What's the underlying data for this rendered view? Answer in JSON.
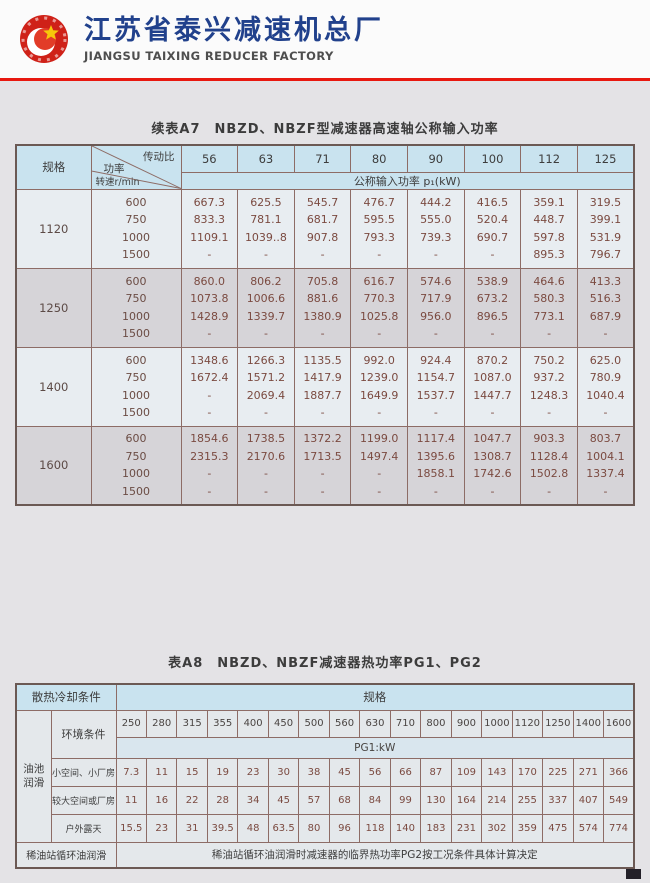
{
  "header": {
    "company_cn": "江苏省泰兴减速机总厂",
    "company_en": "JIANGSU TAIXING REDUCER FACTORY",
    "logo_icon": "gear-star-emblem",
    "accent_color": "#e8180f"
  },
  "table_a7": {
    "title": "续表A7　NBZD、NBZF型减速器高速轴公称输入功率",
    "corner": {
      "spec": "规格",
      "ratio": "传动比",
      "power": "功率",
      "speed": "转速r/min"
    },
    "ratios": [
      "56",
      "63",
      "71",
      "80",
      "90",
      "100",
      "112",
      "125"
    ],
    "subheader": "公称输入功率 p₁(kW)",
    "blocks": [
      {
        "spec": "1120",
        "rows": [
          {
            "speed": "600",
            "values": [
              "667.3",
              "625.5",
              "545.7",
              "476.7",
              "444.2",
              "416.5",
              "359.1",
              "319.5"
            ]
          },
          {
            "speed": "750",
            "values": [
              "833.3",
              "781.1",
              "681.7",
              "595.5",
              "555.0",
              "520.4",
              "448.7",
              "399.1"
            ]
          },
          {
            "speed": "1000",
            "values": [
              "1109.1",
              "1039..8",
              "907.8",
              "793.3",
              "739.3",
              "690.7",
              "597.8",
              "531.9"
            ]
          },
          {
            "speed": "1500",
            "values": [
              "-",
              "-",
              "-",
              "-",
              "-",
              "-",
              "895.3",
              "796.7"
            ]
          }
        ]
      },
      {
        "spec": "1250",
        "rows": [
          {
            "speed": "600",
            "values": [
              "860.0",
              "806.2",
              "705.8",
              "616.7",
              "574.6",
              "538.9",
              "464.6",
              "413.3"
            ]
          },
          {
            "speed": "750",
            "values": [
              "1073.8",
              "1006.6",
              "881.6",
              "770.3",
              "717.9",
              "673.2",
              "580.3",
              "516.3"
            ]
          },
          {
            "speed": "1000",
            "values": [
              "1428.9",
              "1339.7",
              "1380.9",
              "1025.8",
              "956.0",
              "896.5",
              "773.1",
              "687.9"
            ]
          },
          {
            "speed": "1500",
            "values": [
              "-",
              "-",
              "-",
              "-",
              "-",
              "-",
              "-",
              "-"
            ]
          }
        ]
      },
      {
        "spec": "1400",
        "rows": [
          {
            "speed": "600",
            "values": [
              "1348.6",
              "1266.3",
              "1135.5",
              "992.0",
              "924.4",
              "870.2",
              "750.2",
              "625.0"
            ]
          },
          {
            "speed": "750",
            "values": [
              "1672.4",
              "1571.2",
              "1417.9",
              "1239.0",
              "1154.7",
              "1087.0",
              "937.2",
              "780.9"
            ]
          },
          {
            "speed": "1000",
            "values": [
              "-",
              "2069.4",
              "1887.7",
              "1649.9",
              "1537.7",
              "1447.7",
              "1248.3",
              "1040.4"
            ]
          },
          {
            "speed": "1500",
            "values": [
              "-",
              "-",
              "-",
              "-",
              "-",
              "-",
              "-",
              "-"
            ]
          }
        ]
      },
      {
        "spec": "1600",
        "rows": [
          {
            "speed": "600",
            "values": [
              "1854.6",
              "1738.5",
              "1372.2",
              "1199.0",
              "1117.4",
              "1047.7",
              "903.3",
              "803.7"
            ]
          },
          {
            "speed": "750",
            "values": [
              "2315.3",
              "2170.6",
              "1713.5",
              "1497.4",
              "1395.6",
              "1308.7",
              "1128.4",
              "1004.1"
            ]
          },
          {
            "speed": "1000",
            "values": [
              "-",
              "-",
              "-",
              "-",
              "1858.1",
              "1742.6",
              "1502.8",
              "1337.4"
            ]
          },
          {
            "speed": "1500",
            "values": [
              "-",
              "-",
              "-",
              "-",
              "-",
              "-",
              "-",
              "-"
            ]
          }
        ]
      }
    ]
  },
  "table_a8": {
    "title": "表A8　NBZD、NBZF减速器热功率PG1、PG2",
    "cooling_header": "散热冷却条件",
    "spec_header": "规格",
    "oil_pool_label": "油池润滑",
    "env_label": "环境条件",
    "sizes": [
      "250",
      "280",
      "315",
      "355",
      "400",
      "450",
      "500",
      "560",
      "630",
      "710",
      "800",
      "900",
      "1000",
      "1120",
      "1250",
      "1400",
      "1600"
    ],
    "pg1_label": "PG1:kW",
    "rows": [
      {
        "label": "小空间、小厂房",
        "values": [
          "7.3",
          "11",
          "15",
          "19",
          "23",
          "30",
          "38",
          "45",
          "56",
          "66",
          "87",
          "109",
          "143",
          "170",
          "225",
          "271",
          "366"
        ]
      },
      {
        "label": "较大空间或厂房",
        "values": [
          "11",
          "16",
          "22",
          "28",
          "34",
          "45",
          "57",
          "68",
          "84",
          "99",
          "130",
          "164",
          "214",
          "255",
          "337",
          "407",
          "549"
        ]
      },
      {
        "label": "户外露天",
        "values": [
          "15.5",
          "23",
          "31",
          "39.5",
          "48",
          "63.5",
          "80",
          "96",
          "118",
          "140",
          "183",
          "231",
          "302",
          "359",
          "475",
          "574",
          "774"
        ]
      }
    ],
    "thin_oil_label": "稀油站循环油润滑",
    "thin_oil_note": "稀油站循环油润滑时减速器的临界热功率PG2按工况条件具体计算决定"
  }
}
